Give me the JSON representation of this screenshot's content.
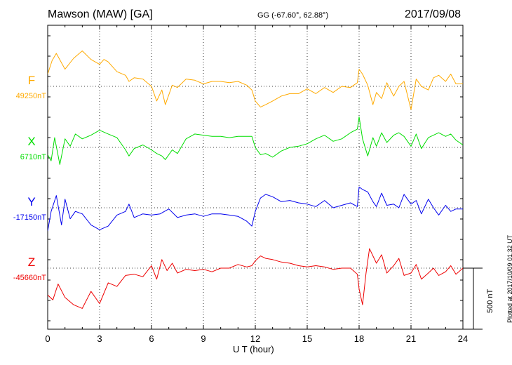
{
  "header": {
    "station": "Mawson (MAW)  [GA]",
    "coords": "GG (-67.60°,  62.88°)",
    "date": "2017/09/08"
  },
  "footer": {
    "plotted": "Plotted at 2017/10/09 01:32 UT",
    "scale": "500 nT"
  },
  "chart_data": {
    "type": "line",
    "xlabel": "U T (hour)",
    "xlim": [
      0,
      24
    ],
    "xticks": [
      "0",
      "3",
      "6",
      "9",
      "12",
      "15",
      "18",
      "21",
      "24"
    ],
    "grid": true,
    "scale_bar_nT": 500,
    "series": [
      {
        "name": "F",
        "baseline_label": "49250nT",
        "baseline": 49250,
        "color": "#ffaa00",
        "x": [
          0,
          0.25,
          0.5,
          1,
          1.5,
          2,
          2.5,
          3,
          3.25,
          3.5,
          4,
          4.5,
          4.7,
          5,
          5.5,
          6,
          6.3,
          6.6,
          6.8,
          7.2,
          7.5,
          8,
          8.5,
          9,
          9.5,
          10,
          10.5,
          11,
          11.5,
          11.8,
          12,
          12.3,
          12.6,
          13,
          13.5,
          14,
          14.5,
          15,
          15.5,
          16,
          16.5,
          17,
          17.5,
          17.9,
          18,
          18.2,
          18.5,
          18.8,
          19,
          19.3,
          19.6,
          20,
          20.3,
          20.6,
          21,
          21.3,
          21.6,
          22,
          22.3,
          22.6,
          23,
          23.3,
          23.6,
          24
        ],
        "y": [
          49350,
          49460,
          49520,
          49390,
          49480,
          49540,
          49470,
          49430,
          49470,
          49450,
          49370,
          49340,
          49290,
          49320,
          49310,
          49250,
          49130,
          49220,
          49100,
          49260,
          49240,
          49310,
          49300,
          49270,
          49290,
          49290,
          49280,
          49290,
          49260,
          49220,
          49130,
          49080,
          49100,
          49130,
          49170,
          49190,
          49190,
          49230,
          49190,
          49240,
          49200,
          49250,
          49240,
          49280,
          49390,
          49350,
          49260,
          49100,
          49200,
          49150,
          49280,
          49170,
          49250,
          49290,
          49060,
          49310,
          49250,
          49220,
          49320,
          49340,
          49290,
          49350,
          49270,
          49270
        ]
      },
      {
        "name": "X",
        "baseline_label": "6710nT",
        "baseline": 6710,
        "color": "#00dd00",
        "x": [
          0,
          0.2,
          0.4,
          0.7,
          1,
          1.3,
          1.6,
          2,
          2.5,
          3,
          3.5,
          4,
          4.5,
          4.7,
          5,
          5.5,
          6,
          6.3,
          6.6,
          6.8,
          7.2,
          7.5,
          8,
          8.5,
          9,
          9.5,
          10,
          10.5,
          11,
          11.5,
          11.8,
          12,
          12.3,
          12.6,
          13,
          13.5,
          14,
          14.5,
          15,
          15.5,
          16,
          16.5,
          17,
          17.5,
          17.9,
          18,
          18.2,
          18.5,
          18.8,
          19,
          19.3,
          19.6,
          20,
          20.3,
          20.6,
          21,
          21.3,
          21.6,
          22,
          22.3,
          22.6,
          23,
          23.3,
          23.6,
          24
        ],
        "y": [
          6650,
          6600,
          6790,
          6570,
          6780,
          6720,
          6820,
          6780,
          6810,
          6850,
          6820,
          6790,
          6690,
          6640,
          6700,
          6730,
          6690,
          6660,
          6640,
          6610,
          6690,
          6660,
          6780,
          6820,
          6810,
          6800,
          6800,
          6790,
          6800,
          6800,
          6800,
          6710,
          6650,
          6660,
          6630,
          6680,
          6710,
          6720,
          6740,
          6780,
          6810,
          6760,
          6780,
          6830,
          6860,
          6960,
          6780,
          6640,
          6790,
          6720,
          6830,
          6750,
          6810,
          6830,
          6800,
          6720,
          6820,
          6700,
          6790,
          6810,
          6830,
          6800,
          6820,
          6770,
          6730
        ]
      },
      {
        "name": "Y",
        "baseline_label": "-17150nT",
        "baseline": -17150,
        "color": "#0000ee",
        "x": [
          0,
          0.2,
          0.5,
          0.8,
          1,
          1.3,
          1.6,
          2,
          2.5,
          3,
          3.5,
          4,
          4.5,
          4.7,
          5,
          5.5,
          6,
          6.5,
          7,
          7.5,
          8,
          8.5,
          9,
          9.5,
          10,
          10.5,
          11,
          11.5,
          11.8,
          12,
          12.3,
          12.6,
          13,
          13.5,
          14,
          14.5,
          15,
          15.5,
          16,
          16.5,
          17,
          17.5,
          17.9,
          18,
          18.2,
          18.5,
          18.8,
          19,
          19.3,
          19.6,
          20,
          20.3,
          20.6,
          21,
          21.3,
          21.6,
          22,
          22.3,
          22.6,
          23,
          23.3,
          23.6,
          24
        ],
        "y": [
          -17340,
          -17180,
          -17050,
          -17290,
          -17080,
          -17240,
          -17180,
          -17200,
          -17290,
          -17330,
          -17300,
          -17210,
          -17180,
          -17120,
          -17230,
          -17200,
          -17210,
          -17200,
          -17160,
          -17230,
          -17210,
          -17200,
          -17220,
          -17200,
          -17200,
          -17210,
          -17220,
          -17260,
          -17300,
          -17180,
          -17070,
          -17040,
          -17060,
          -17100,
          -17090,
          -17110,
          -17120,
          -17140,
          -17090,
          -17150,
          -17130,
          -17110,
          -17140,
          -16980,
          -17000,
          -17020,
          -17100,
          -17140,
          -17030,
          -17130,
          -17120,
          -17150,
          -17040,
          -17120,
          -17090,
          -17200,
          -17080,
          -17150,
          -17210,
          -17130,
          -17180,
          -17160,
          -17160
        ]
      },
      {
        "name": "Z",
        "baseline_label": "-45660nT",
        "baseline": -45660,
        "color": "#ee0000",
        "x": [
          0,
          0.3,
          0.6,
          1,
          1.5,
          2,
          2.5,
          3,
          3.5,
          4,
          4.5,
          5,
          5.5,
          6,
          6.3,
          6.6,
          6.9,
          7.2,
          7.5,
          8,
          8.5,
          9,
          9.5,
          10,
          10.5,
          11,
          11.5,
          11.8,
          12,
          12.3,
          12.6,
          13,
          13.5,
          14,
          14.5,
          15,
          15.5,
          16,
          16.5,
          17,
          17.5,
          17.9,
          18,
          18.2,
          18.4,
          18.6,
          19,
          19.3,
          19.6,
          20,
          20.3,
          20.6,
          21,
          21.3,
          21.6,
          22,
          22.3,
          22.6,
          23,
          23.3,
          23.6,
          24
        ],
        "y": [
          -45880,
          -45920,
          -45790,
          -45900,
          -45960,
          -45990,
          -45850,
          -45950,
          -45780,
          -45810,
          -45720,
          -45710,
          -45730,
          -45640,
          -45750,
          -45590,
          -45680,
          -45620,
          -45700,
          -45670,
          -45680,
          -45670,
          -45690,
          -45660,
          -45660,
          -45630,
          -45650,
          -45640,
          -45600,
          -45560,
          -45580,
          -45590,
          -45610,
          -45620,
          -45640,
          -45650,
          -45640,
          -45650,
          -45670,
          -45660,
          -45660,
          -45710,
          -45830,
          -45960,
          -45700,
          -45500,
          -45620,
          -45550,
          -45700,
          -45640,
          -45580,
          -45720,
          -45700,
          -45630,
          -45750,
          -45700,
          -45660,
          -45720,
          -45690,
          -45640,
          -45710,
          -45660
        ]
      }
    ]
  }
}
